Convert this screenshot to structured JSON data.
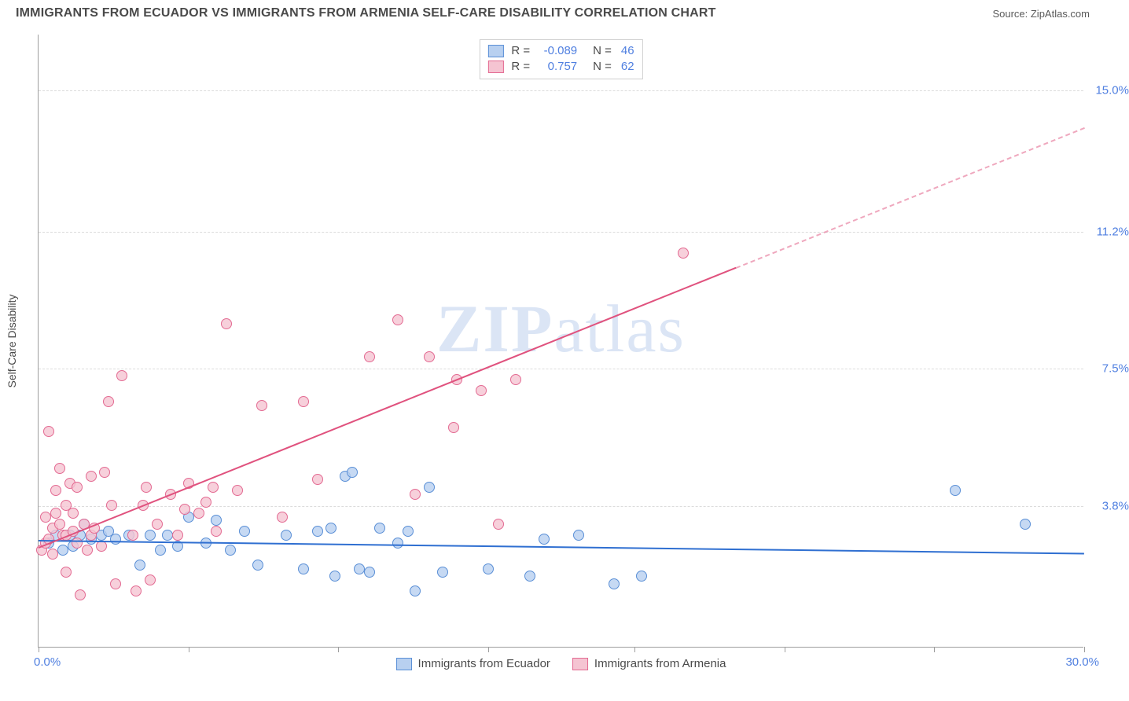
{
  "title": "IMMIGRANTS FROM ECUADOR VS IMMIGRANTS FROM ARMENIA SELF-CARE DISABILITY CORRELATION CHART",
  "source_label": "Source: ",
  "source_name": "ZipAtlas.com",
  "watermark_a": "ZIP",
  "watermark_b": "atlas",
  "y_axis_title": "Self-Care Disability",
  "chart": {
    "type": "scatter",
    "xlim": [
      0,
      30
    ],
    "ylim": [
      0,
      16.5
    ],
    "x_origin_label": "0.0%",
    "x_max_label": "30.0%",
    "y_ticks": [
      {
        "v": 3.8,
        "label": "3.8%"
      },
      {
        "v": 7.5,
        "label": "7.5%"
      },
      {
        "v": 11.2,
        "label": "11.2%"
      },
      {
        "v": 15.0,
        "label": "15.0%"
      }
    ],
    "x_tick_positions": [
      0,
      4.3,
      8.6,
      12.9,
      17.1,
      21.4,
      25.7,
      30
    ],
    "background_color": "#ffffff",
    "grid_color": "#dcdcdc",
    "axis_color": "#9e9e9e",
    "marker_radius": 7,
    "legend_top": [
      {
        "r_label": "R =",
        "r": "-0.089",
        "n_label": "N =",
        "n": "46",
        "fill": "#b8d0f0",
        "stroke": "#5a8fd6"
      },
      {
        "r_label": "R =",
        "r": "0.757",
        "n_label": "N =",
        "n": "62",
        "fill": "#f5c4d2",
        "stroke": "#e36a92"
      }
    ],
    "legend_bottom": [
      {
        "label": "Immigrants from Ecuador",
        "fill": "#b8d0f0",
        "stroke": "#5a8fd6"
      },
      {
        "label": "Immigrants from Armenia",
        "fill": "#f5c4d2",
        "stroke": "#e36a92"
      }
    ],
    "series": [
      {
        "name": "Immigrants from Ecuador",
        "fill": "#b8d0f0cc",
        "stroke": "#5a8fd6",
        "trend": {
          "x0": 0,
          "y0": 2.9,
          "x1": 30,
          "y1": 2.55,
          "color": "#2f6fd1",
          "dash_from_x": null
        },
        "points": [
          [
            0.3,
            2.8
          ],
          [
            0.5,
            3.0
          ],
          [
            0.7,
            2.6
          ],
          [
            0.9,
            3.0
          ],
          [
            1.0,
            2.7
          ],
          [
            1.2,
            3.0
          ],
          [
            1.3,
            3.3
          ],
          [
            1.5,
            2.9
          ],
          [
            1.8,
            3.0
          ],
          [
            2.0,
            3.1
          ],
          [
            2.2,
            2.9
          ],
          [
            2.6,
            3.0
          ],
          [
            2.9,
            2.2
          ],
          [
            3.2,
            3.0
          ],
          [
            3.5,
            2.6
          ],
          [
            3.7,
            3.0
          ],
          [
            4.0,
            2.7
          ],
          [
            4.3,
            3.5
          ],
          [
            4.8,
            2.8
          ],
          [
            5.1,
            3.4
          ],
          [
            5.5,
            2.6
          ],
          [
            5.9,
            3.1
          ],
          [
            6.3,
            2.2
          ],
          [
            7.1,
            3.0
          ],
          [
            7.6,
            2.1
          ],
          [
            8.0,
            3.1
          ],
          [
            8.4,
            3.2
          ],
          [
            8.5,
            1.9
          ],
          [
            8.8,
            4.6
          ],
          [
            9.0,
            4.7
          ],
          [
            9.2,
            2.1
          ],
          [
            9.5,
            2.0
          ],
          [
            9.8,
            3.2
          ],
          [
            10.3,
            2.8
          ],
          [
            10.6,
            3.1
          ],
          [
            10.8,
            1.5
          ],
          [
            11.2,
            4.3
          ],
          [
            11.6,
            2.0
          ],
          [
            12.9,
            2.1
          ],
          [
            14.1,
            1.9
          ],
          [
            14.5,
            2.9
          ],
          [
            15.5,
            3.0
          ],
          [
            16.5,
            1.7
          ],
          [
            17.3,
            1.9
          ],
          [
            26.3,
            4.2
          ],
          [
            28.3,
            3.3
          ]
        ]
      },
      {
        "name": "Immigrants from Armenia",
        "fill": "#f5c4d2cc",
        "stroke": "#e36a92",
        "trend": {
          "x0": 0,
          "y0": 2.7,
          "x1": 30,
          "y1": 14.0,
          "color": "#e0527e",
          "dash_from_x": 20
        },
        "points": [
          [
            0.1,
            2.6
          ],
          [
            0.2,
            2.8
          ],
          [
            0.2,
            3.5
          ],
          [
            0.3,
            2.9
          ],
          [
            0.3,
            5.8
          ],
          [
            0.4,
            2.5
          ],
          [
            0.4,
            3.2
          ],
          [
            0.5,
            4.2
          ],
          [
            0.5,
            3.6
          ],
          [
            0.6,
            4.8
          ],
          [
            0.6,
            3.3
          ],
          [
            0.7,
            3.0
          ],
          [
            0.8,
            3.0
          ],
          [
            0.8,
            3.8
          ],
          [
            0.8,
            2.0
          ],
          [
            0.9,
            4.4
          ],
          [
            1.0,
            3.1
          ],
          [
            1.0,
            3.6
          ],
          [
            1.1,
            2.8
          ],
          [
            1.1,
            4.3
          ],
          [
            1.2,
            1.4
          ],
          [
            1.3,
            3.3
          ],
          [
            1.4,
            2.6
          ],
          [
            1.5,
            3.0
          ],
          [
            1.5,
            4.6
          ],
          [
            1.6,
            3.2
          ],
          [
            1.8,
            2.7
          ],
          [
            1.9,
            4.7
          ],
          [
            2.0,
            6.6
          ],
          [
            2.1,
            3.8
          ],
          [
            2.2,
            1.7
          ],
          [
            2.4,
            7.3
          ],
          [
            2.7,
            3.0
          ],
          [
            2.8,
            1.5
          ],
          [
            3.0,
            3.8
          ],
          [
            3.1,
            4.3
          ],
          [
            3.2,
            1.8
          ],
          [
            3.4,
            3.3
          ],
          [
            3.8,
            4.1
          ],
          [
            4.0,
            3.0
          ],
          [
            4.2,
            3.7
          ],
          [
            4.3,
            4.4
          ],
          [
            4.6,
            3.6
          ],
          [
            4.8,
            3.9
          ],
          [
            5.0,
            4.3
          ],
          [
            5.1,
            3.1
          ],
          [
            5.4,
            8.7
          ],
          [
            5.7,
            4.2
          ],
          [
            6.4,
            6.5
          ],
          [
            7.0,
            3.5
          ],
          [
            7.6,
            6.6
          ],
          [
            8.0,
            4.5
          ],
          [
            9.5,
            7.8
          ],
          [
            10.3,
            8.8
          ],
          [
            10.8,
            4.1
          ],
          [
            11.2,
            7.8
          ],
          [
            11.9,
            5.9
          ],
          [
            12.0,
            7.2
          ],
          [
            12.7,
            6.9
          ],
          [
            13.2,
            3.3
          ],
          [
            13.7,
            7.2
          ],
          [
            18.5,
            10.6
          ]
        ]
      }
    ]
  }
}
